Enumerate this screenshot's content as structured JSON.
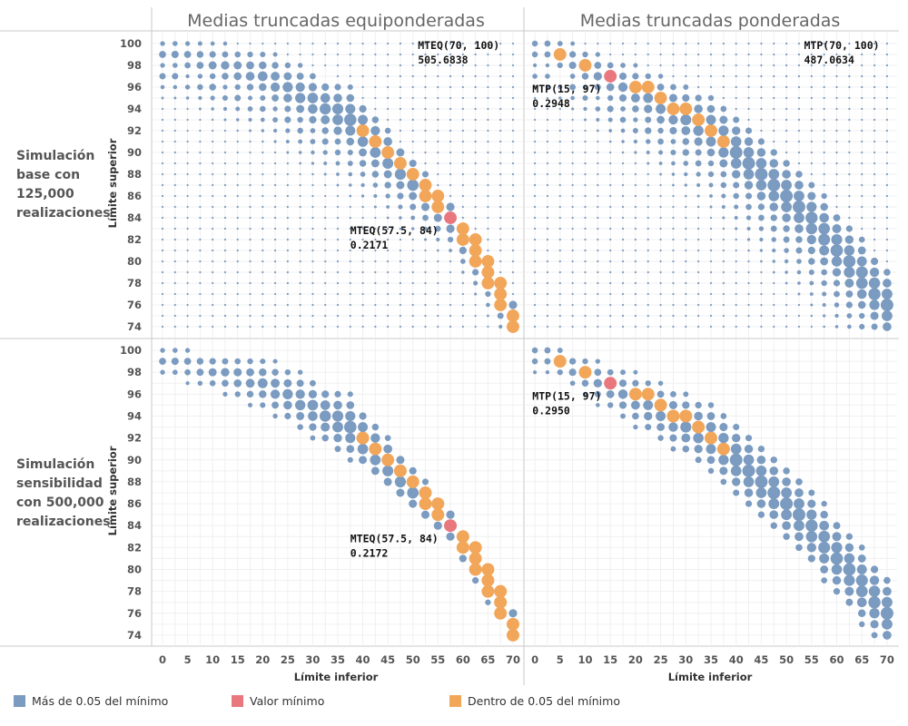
{
  "chart_data": {
    "type": "scatter",
    "column_titles": [
      "Medias truncadas equiponderadas",
      "Medias truncadas ponderadas"
    ],
    "row_titles": [
      [
        "Simulación",
        "base con",
        "125,000",
        "realizaciones"
      ],
      [
        "Simulación",
        "sensibilidad",
        "con 500,000",
        "realizaciones"
      ]
    ],
    "xlabel": "Límite inferior",
    "ylabel": "Límite superior",
    "x_ticks": [
      0,
      5,
      10,
      15,
      20,
      25,
      30,
      35,
      40,
      45,
      50,
      55,
      60,
      65,
      70
    ],
    "y_ticks": [
      100,
      98,
      96,
      94,
      92,
      90,
      88,
      86,
      84,
      82,
      80,
      78,
      76,
      74
    ],
    "xlim": [
      -2,
      72
    ],
    "ylim": [
      73,
      101
    ],
    "x_step": 2.5,
    "y_step": 1,
    "legend": [
      {
        "label": "Más de 0.05 del mínimo",
        "color": "#7b9bc0"
      },
      {
        "label": "Valor mínimo",
        "color": "#e8787e"
      },
      {
        "label": "Dentro de 0.05 del mínimo",
        "color": "#f2a65a"
      }
    ],
    "panels": [
      {
        "row": 0,
        "col": 0,
        "method": "equal",
        "dense": true,
        "band_center": [
          [
            2.5,
            99
          ],
          [
            20,
            97
          ],
          [
            37.5,
            93
          ],
          [
            57.5,
            84
          ],
          [
            70,
            75
          ]
        ],
        "band_halfwidth": [
          1.8,
          2.5,
          3.0,
          1.6,
          1.6
        ],
        "min_point": [
          57.5,
          84
        ],
        "near_min_points": [
          [
            40,
            92
          ],
          [
            42.5,
            91
          ],
          [
            45,
            90
          ],
          [
            47.5,
            89
          ],
          [
            50,
            88
          ],
          [
            52.5,
            87
          ],
          [
            52.5,
            86
          ],
          [
            55,
            86
          ],
          [
            55,
            85
          ],
          [
            60,
            83
          ],
          [
            60,
            82
          ],
          [
            62.5,
            82
          ],
          [
            62.5,
            81
          ],
          [
            62.5,
            80
          ],
          [
            65,
            80
          ],
          [
            65,
            79
          ],
          [
            65,
            78
          ],
          [
            67.5,
            78
          ],
          [
            67.5,
            77
          ],
          [
            67.5,
            76
          ],
          [
            70,
            75
          ],
          [
            70,
            74
          ]
        ],
        "annotations": [
          {
            "lines": [
              "MTEQ(70, 100)",
              "505.6838"
            ],
            "x": 51,
            "y": 99.5
          },
          {
            "lines": [
              "MTEQ(57.5, 84)",
              "0.2171"
            ],
            "x": 37.5,
            "y": 82.5
          }
        ]
      },
      {
        "row": 0,
        "col": 1,
        "method": "weighted",
        "dense": true,
        "band_center": [
          [
            2.5,
            99.5
          ],
          [
            17.5,
            96
          ],
          [
            35,
            92
          ],
          [
            52.5,
            85
          ],
          [
            70,
            76
          ]
        ],
        "band_halfwidth": [
          1.8,
          2.5,
          3.2,
          3.6,
          3.6
        ],
        "min_point": [
          15,
          97
        ],
        "near_min_points": [
          [
            5,
            99
          ],
          [
            10,
            98
          ],
          [
            20,
            96
          ],
          [
            22.5,
            96
          ],
          [
            25,
            95
          ],
          [
            27.5,
            94
          ],
          [
            30,
            94
          ],
          [
            32.5,
            93
          ],
          [
            35,
            92
          ],
          [
            37.5,
            91
          ]
        ],
        "annotations": [
          {
            "lines": [
              "MTP(70, 100)",
              "487.0634"
            ],
            "x": 53.5,
            "y": 99.5
          },
          {
            "lines": [
              "MTP(15, 97)",
              "0.2948"
            ],
            "x": -0.5,
            "y": 95.5
          }
        ]
      },
      {
        "row": 1,
        "col": 0,
        "method": "equal",
        "dense": false,
        "band_center": [
          [
            2.5,
            99
          ],
          [
            20,
            97
          ],
          [
            37.5,
            93
          ],
          [
            57.5,
            84
          ],
          [
            70,
            75
          ]
        ],
        "band_halfwidth": [
          1.8,
          2.5,
          3.0,
          1.6,
          1.6
        ],
        "min_point": [
          57.5,
          84
        ],
        "near_min_points": [
          [
            40,
            92
          ],
          [
            42.5,
            91
          ],
          [
            45,
            90
          ],
          [
            47.5,
            89
          ],
          [
            50,
            88
          ],
          [
            52.5,
            87
          ],
          [
            52.5,
            86
          ],
          [
            55,
            86
          ],
          [
            55,
            85
          ],
          [
            60,
            83
          ],
          [
            60,
            82
          ],
          [
            62.5,
            82
          ],
          [
            62.5,
            81
          ],
          [
            62.5,
            80
          ],
          [
            65,
            80
          ],
          [
            65,
            79
          ],
          [
            65,
            78
          ],
          [
            67.5,
            78
          ],
          [
            67.5,
            77
          ],
          [
            67.5,
            76
          ],
          [
            70,
            75
          ],
          [
            70,
            74
          ]
        ],
        "annotations": [
          {
            "lines": [
              "MTEQ(57.5, 84)",
              "0.2172"
            ],
            "x": 37.5,
            "y": 82.5
          }
        ]
      },
      {
        "row": 1,
        "col": 1,
        "method": "weighted",
        "dense": false,
        "band_center": [
          [
            2.5,
            99.5
          ],
          [
            17.5,
            96
          ],
          [
            35,
            92
          ],
          [
            52.5,
            85
          ],
          [
            70,
            76
          ]
        ],
        "band_halfwidth": [
          1.8,
          2.5,
          3.2,
          3.6,
          3.6
        ],
        "min_point": [
          15,
          97
        ],
        "near_min_points": [
          [
            5,
            99
          ],
          [
            10,
            98
          ],
          [
            20,
            96
          ],
          [
            22.5,
            96
          ],
          [
            25,
            95
          ],
          [
            27.5,
            94
          ],
          [
            30,
            94
          ],
          [
            32.5,
            93
          ],
          [
            35,
            92
          ],
          [
            37.5,
            91
          ]
        ],
        "annotations": [
          {
            "lines": [
              "MTP(15, 97)",
              "0.2950"
            ],
            "x": -0.5,
            "y": 95.5
          }
        ]
      }
    ]
  }
}
